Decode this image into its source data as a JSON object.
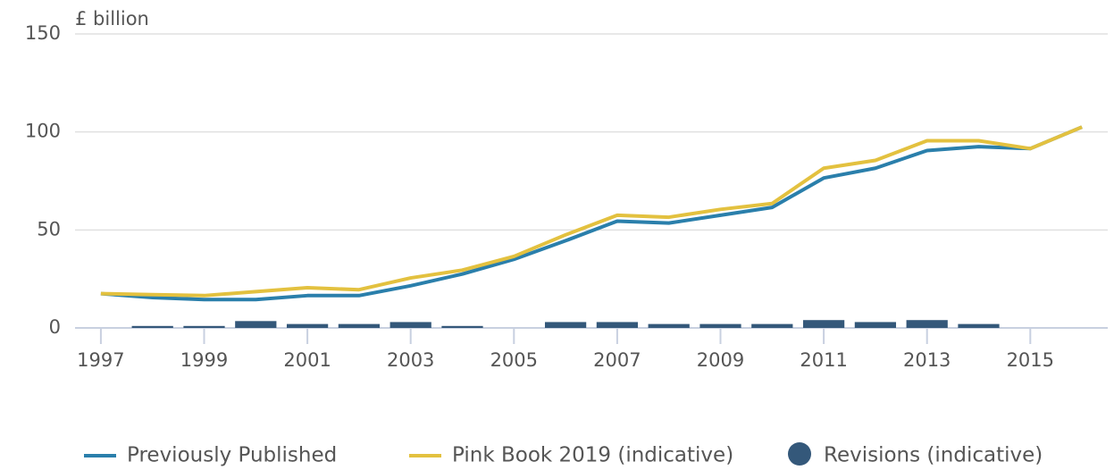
{
  "chart_data": {
    "type": "line",
    "y_label": "£ billion",
    "x": [
      1997,
      1998,
      1999,
      2000,
      2001,
      2002,
      2003,
      2004,
      2005,
      2006,
      2007,
      2008,
      2009,
      2010,
      2011,
      2012,
      2013,
      2014,
      2015,
      2016
    ],
    "xlim": [
      1996.5,
      2016.5
    ],
    "xticks": [
      1997,
      1999,
      2001,
      2003,
      2005,
      2007,
      2009,
      2011,
      2013,
      2015
    ],
    "ylim": [
      0,
      150
    ],
    "yticks": [
      0,
      50,
      100,
      150
    ],
    "grid": true,
    "series": [
      {
        "name": "Previously Published",
        "type": "line",
        "color": "#2a7fab",
        "values": [
          17.5,
          15.5,
          14.5,
          14.5,
          16.5,
          16.5,
          21.5,
          27.5,
          35,
          44.5,
          54.5,
          53.5,
          57.5,
          61.5,
          76.5,
          81.5,
          90.5,
          92.5,
          91.5,
          102.5
        ]
      },
      {
        "name": "Pink Book 2019 (indicative)",
        "type": "line",
        "color": "#e3c13f",
        "values": [
          17.5,
          17,
          16.5,
          18.5,
          20.5,
          19.5,
          25.5,
          29.5,
          36.5,
          47.5,
          57.5,
          56.5,
          60.5,
          63.5,
          81.5,
          85.5,
          95.5,
          95.5,
          91.5,
          102.5
        ]
      },
      {
        "name": "Revisions (indicative)",
        "type": "bar",
        "color": "#34587a",
        "values": [
          0,
          1,
          1,
          3.5,
          2,
          2,
          3,
          1,
          0,
          3,
          3,
          2,
          2,
          2,
          4,
          3,
          4,
          2,
          0,
          0
        ]
      }
    ]
  }
}
